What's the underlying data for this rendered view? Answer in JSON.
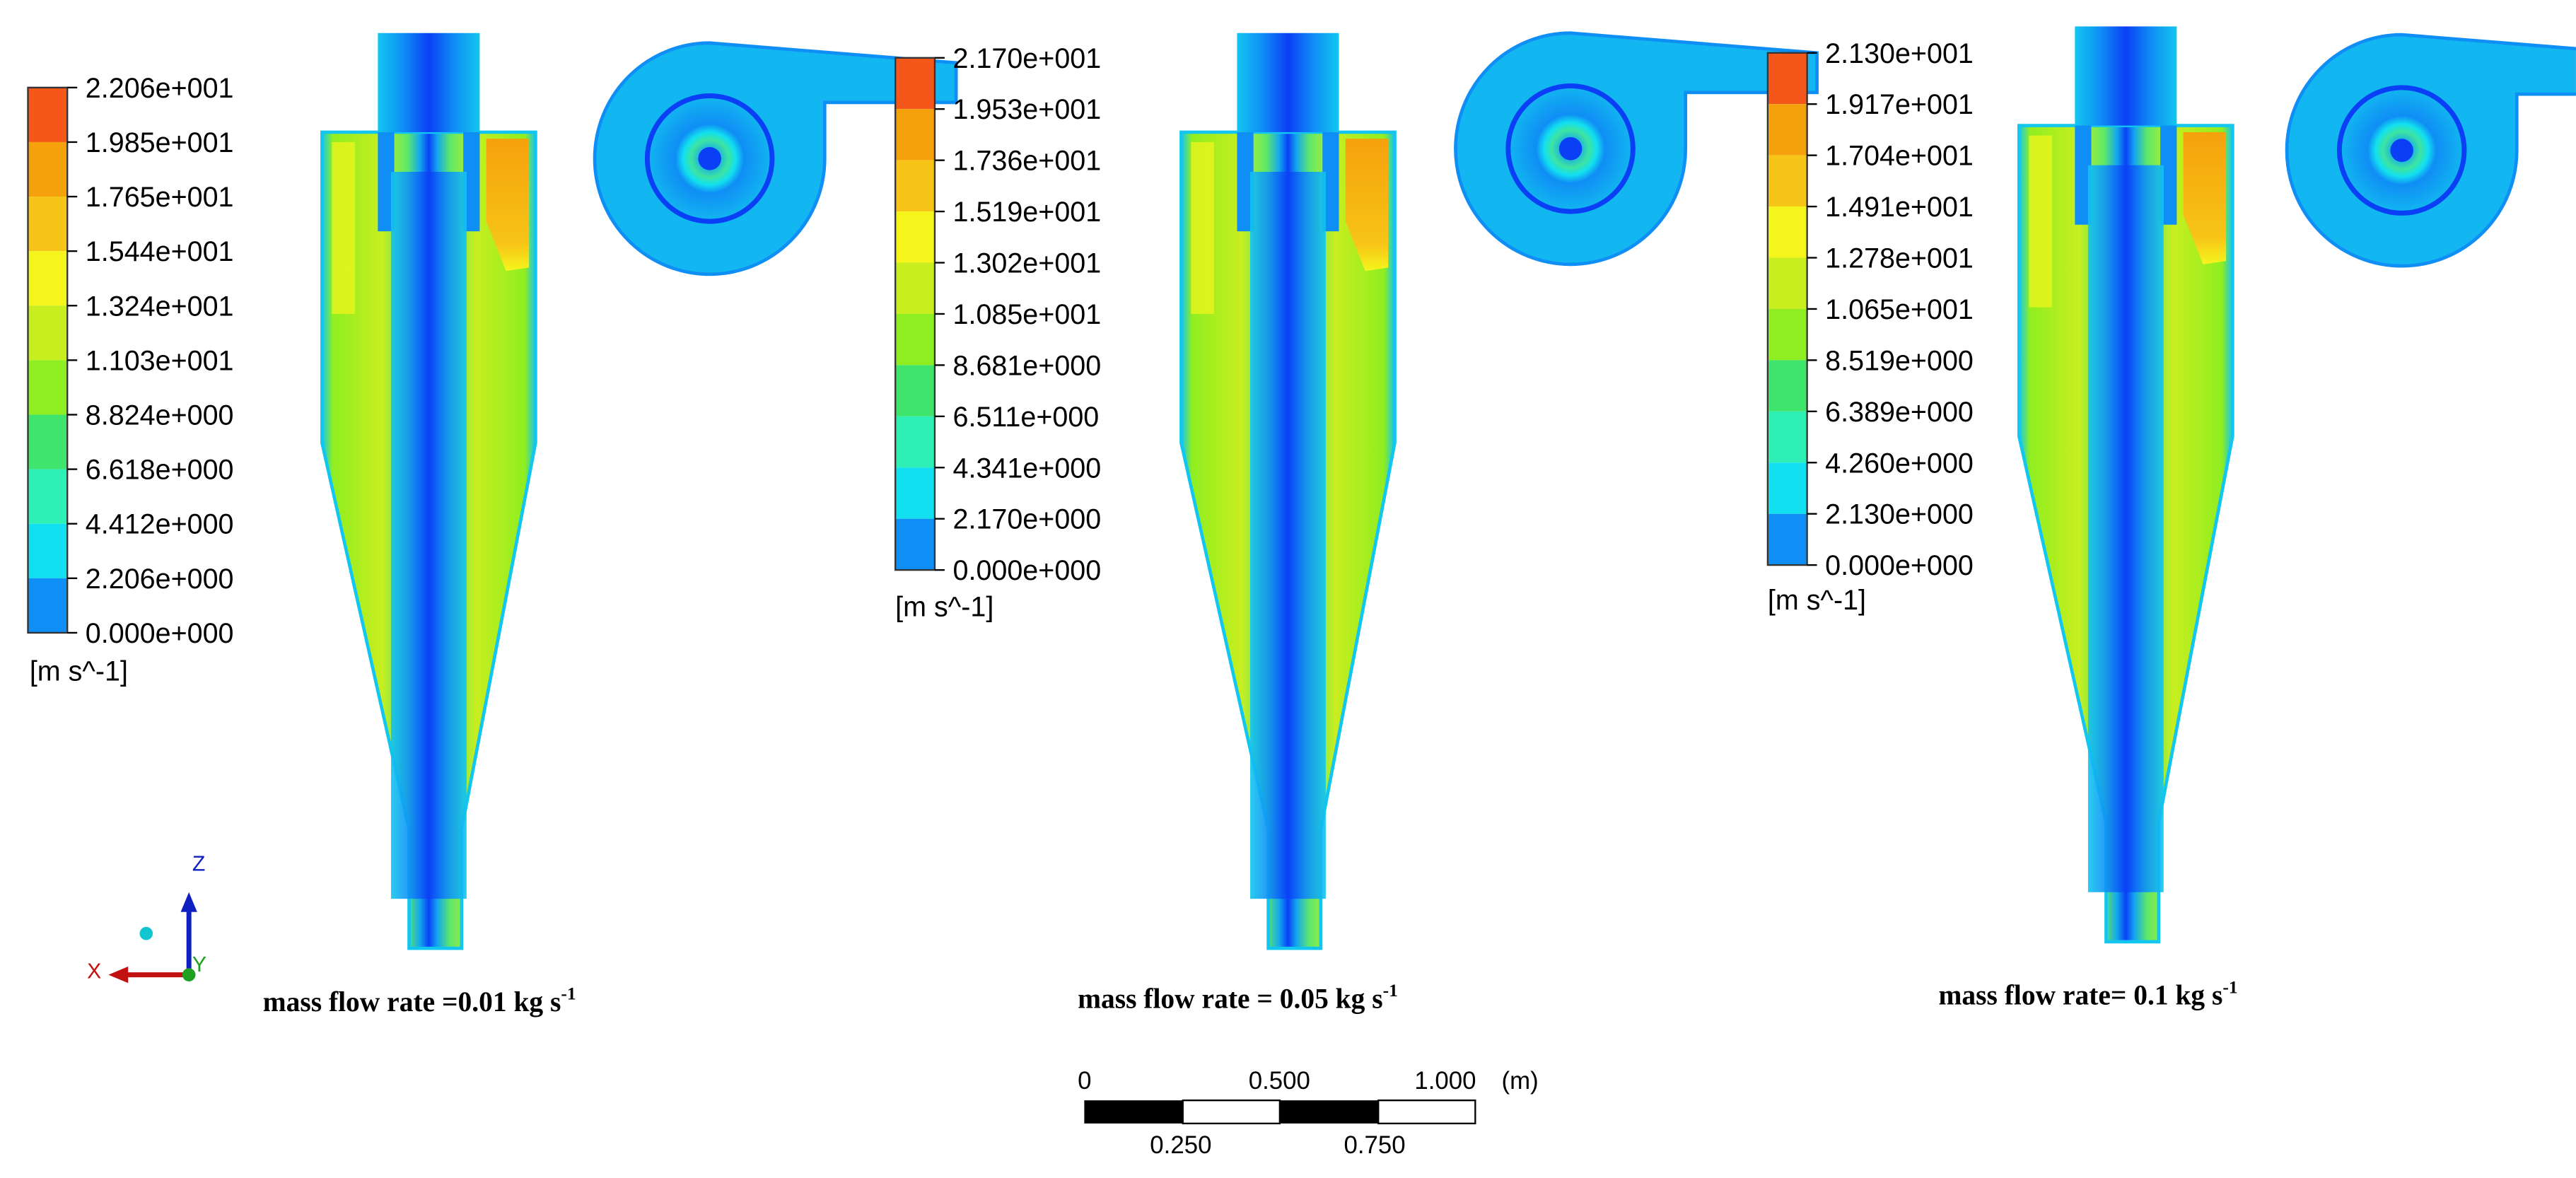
{
  "legend_colors": [
    "#0b3ff5",
    "#0f8ef5",
    "#12e0f0",
    "#2ef0b4",
    "#3ee46c",
    "#8fee21",
    "#c8ee1f",
    "#f5f51c",
    "#f7c517",
    "#f5a10c",
    "#f5561a"
  ],
  "panels": [
    {
      "legend_labels": [
        "2.206e+001",
        "1.985e+001",
        "1.765e+001",
        "1.544e+001",
        "1.324e+001",
        "1.103e+001",
        "8.824e+000",
        "6.618e+000",
        "4.412e+000",
        "2.206e+000",
        "0.000e+000"
      ],
      "unit": "[m s^-1]",
      "caption": "mass flow rate =0.01 kg s",
      "caption_sup": "-1"
    },
    {
      "legend_labels": [
        "2.170e+001",
        "1.953e+001",
        "1.736e+001",
        "1.519e+001",
        "1.302e+001",
        "1.085e+001",
        "8.681e+000",
        "6.511e+000",
        "4.341e+000",
        "2.170e+000",
        "0.000e+000"
      ],
      "unit": "[m s^-1]",
      "caption": "mass flow rate = 0.05 kg s",
      "caption_sup": "-1"
    },
    {
      "legend_labels": [
        "2.130e+001",
        "1.917e+001",
        "1.704e+001",
        "1.491e+001",
        "1.278e+001",
        "1.065e+001",
        "8.519e+000",
        "6.389e+000",
        "4.260e+000",
        "2.130e+000",
        "0.000e+000"
      ],
      "unit": "[m s^-1]",
      "caption": "mass flow rate= 0.1 kg s",
      "caption_sup": "-1"
    }
  ],
  "scale_bar": {
    "labels_top": [
      "0",
      "0.500",
      "1.000",
      "(m)"
    ],
    "labels_bottom": [
      "0.250",
      "0.750"
    ]
  },
  "axes": {
    "z": "Z",
    "x": "X",
    "y": "Y"
  }
}
